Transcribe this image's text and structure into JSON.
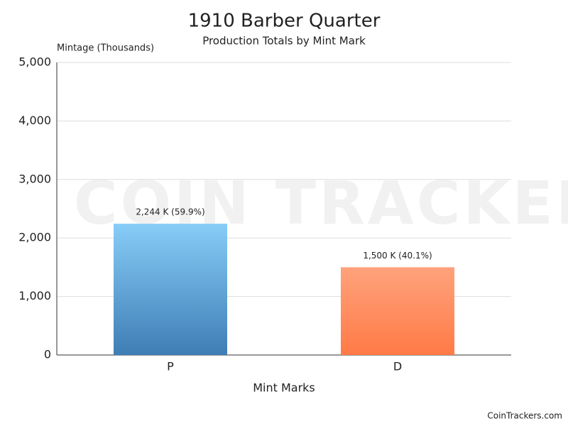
{
  "chart_data": {
    "type": "bar",
    "title": "1910 Barber Quarter",
    "subtitle": "Production Totals by Mint Mark",
    "y_label": "Mintage (Thousands)",
    "x_label": "Mint Marks",
    "categories": [
      "P",
      "D"
    ],
    "values": [
      2244,
      1500
    ],
    "value_labels": [
      "2,244 K (59.9%)",
      "1,500 K (40.1%)"
    ],
    "colors": [
      {
        "top": "#87cdf8",
        "bottom": "#3f7db5"
      },
      {
        "top": "#ffa27c",
        "bottom": "#ff7a46"
      }
    ],
    "ylim": [
      0,
      5000
    ],
    "yticks": [
      0,
      {
        "value": 1000,
        "label": "1,000"
      },
      {
        "value": 2000,
        "label": "2,000"
      },
      {
        "value": 3000,
        "label": "3,000"
      },
      {
        "value": 4000,
        "label": "4,000"
      },
      {
        "value": 5000,
        "label": "5,000"
      }
    ],
    "grid": true,
    "watermark": "COIN TRACKERS",
    "credit": "CoinTrackers.com"
  }
}
